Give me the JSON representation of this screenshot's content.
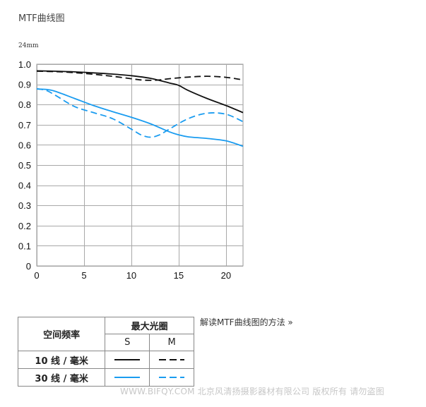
{
  "header": {
    "title": "MTF曲线图",
    "focal_length": "24mm"
  },
  "chart_data": {
    "type": "line",
    "title": "MTF曲线图",
    "subtitle": "24mm",
    "xlabel": "",
    "ylabel": "",
    "xlim": [
      0,
      21.8
    ],
    "ylim": [
      0,
      1.0
    ],
    "x_ticks": [
      0,
      5,
      10,
      15,
      20
    ],
    "y_ticks": [
      0,
      0.1,
      0.2,
      0.3,
      0.4,
      0.5,
      0.6,
      0.7,
      0.8,
      0.9,
      1.0
    ],
    "y_tick_labels": [
      "0",
      "0.1",
      "0.2",
      "0.3",
      "0.4",
      "0.5",
      "0.6",
      "0.7",
      "0.8",
      "0.9",
      "1.0"
    ],
    "x_tick_labels": [
      "0",
      "5",
      "10",
      "15",
      "20"
    ],
    "grid": true,
    "colors": {
      "black": "#111111",
      "blue": "#1a9cf0"
    },
    "series": [
      {
        "key": "10lpmm_S",
        "color": "#111111",
        "dash": "solid",
        "x": [
          0,
          2,
          4,
          6,
          8,
          10,
          12,
          14,
          15,
          16,
          18,
          20,
          21.8
        ],
        "y": [
          0.967,
          0.965,
          0.962,
          0.957,
          0.951,
          0.943,
          0.93,
          0.907,
          0.895,
          0.87,
          0.83,
          0.795,
          0.76
        ]
      },
      {
        "key": "10lpmm_M",
        "color": "#111111",
        "dash": "dashed",
        "x": [
          0,
          2,
          4,
          6,
          8,
          10,
          11,
          12,
          13,
          14,
          16,
          18,
          20,
          21.8
        ],
        "y": [
          0.965,
          0.963,
          0.958,
          0.95,
          0.94,
          0.928,
          0.922,
          0.92,
          0.922,
          0.928,
          0.936,
          0.94,
          0.935,
          0.922
        ]
      },
      {
        "key": "30lpmm_S",
        "color": "#1a9cf0",
        "dash": "solid",
        "x": [
          0,
          1,
          2,
          4,
          6,
          8,
          10,
          12,
          14,
          15,
          16,
          18,
          20,
          21.8
        ],
        "y": [
          0.877,
          0.875,
          0.865,
          0.83,
          0.795,
          0.765,
          0.737,
          0.705,
          0.665,
          0.65,
          0.64,
          0.632,
          0.62,
          0.593
        ]
      },
      {
        "key": "30lpmm_M",
        "color": "#1a9cf0",
        "dash": "dashed",
        "x": [
          0,
          1,
          2,
          4,
          6,
          8,
          10,
          11,
          12,
          13,
          14,
          16,
          18,
          20,
          21.8
        ],
        "y": [
          0.878,
          0.87,
          0.845,
          0.79,
          0.76,
          0.73,
          0.678,
          0.65,
          0.638,
          0.65,
          0.678,
          0.73,
          0.757,
          0.752,
          0.715
        ]
      }
    ]
  },
  "legend_table": {
    "spatial_header": "空间频率",
    "aperture_header": "最大光圈",
    "s_label": "S",
    "m_label": "M",
    "row_10": "10 线 / 毫米",
    "row_30": "30 线 / 毫米"
  },
  "help_link": "解读MTF曲线图的方法 »",
  "watermark": "WWW.BIFQY.COM 北京风清扬摄影器材有限公司 版权所有 请勿盗图"
}
